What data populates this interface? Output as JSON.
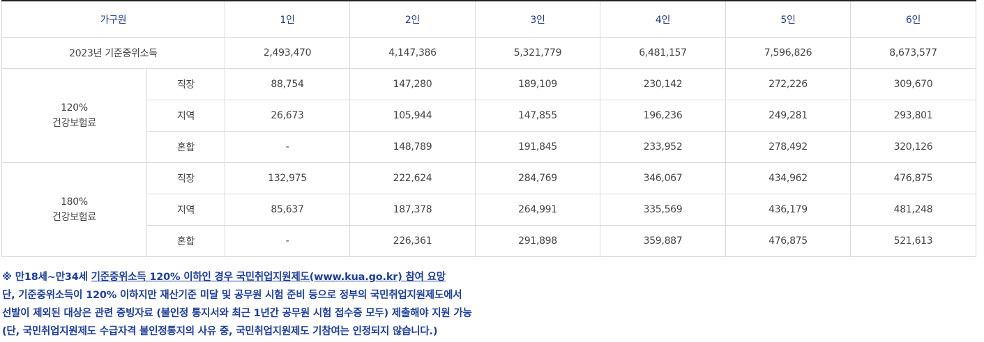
{
  "table": {
    "headers": [
      "가구원",
      "1인",
      "2인",
      "3인",
      "4인",
      "5인",
      "6인"
    ],
    "median_income": {
      "label": "2023년 기준중위소득",
      "values": [
        "2,493,470",
        "4,147,386",
        "5,321,779",
        "6,481,157",
        "7,596,826",
        "8,673,577"
      ]
    },
    "groups": [
      {
        "pct": "120%",
        "name": "건강보험료",
        "rows": [
          {
            "type": "직장",
            "values": [
              "88,754",
              "147,280",
              "189,109",
              "230,142",
              "272,226",
              "309,670"
            ]
          },
          {
            "type": "지역",
            "values": [
              "26,673",
              "105,944",
              "147,855",
              "196,236",
              "249,281",
              "293,801"
            ]
          },
          {
            "type": "혼합",
            "values": [
              "-",
              "148,789",
              "191,845",
              "233,952",
              "278,492",
              "320,126"
            ]
          }
        ]
      },
      {
        "pct": "180%",
        "name": "건강보험료",
        "rows": [
          {
            "type": "직장",
            "values": [
              "132,975",
              "222,624",
              "284,769",
              "346,067",
              "434,962",
              "476,875"
            ]
          },
          {
            "type": "지역",
            "values": [
              "85,637",
              "187,378",
              "264,991",
              "335,569",
              "436,179",
              "481,248"
            ]
          },
          {
            "type": "혼합",
            "values": [
              "-",
              "226,361",
              "291,898",
              "359,887",
              "476,875",
              "521,613"
            ]
          }
        ]
      }
    ]
  },
  "notes": {
    "line1_prefix": "※ 만18세~만34세 ",
    "line1_link": "기준중위소득 120% 이하인 경우 국민취업지원제도(www.kua.go.kr) 참여 요망",
    "line2": "단, 기준중위소득이 120% 이하지만 재산기준 미달 및 공무원 시험 준비 등으로 정부의 국민취업지원제도에서",
    "line3": "선발이 제외된 대상은 관련 증빙자료 (불인정 통지서와 최근 1년간 공무원 시험 접수증 모두) 제출해야 지원 가능",
    "line4": "(단, 국민취업지원제도 수급자격 불인정통지의 사유 중, 국민취업지원제도 기참여는 인정되지 않습니다.)"
  }
}
